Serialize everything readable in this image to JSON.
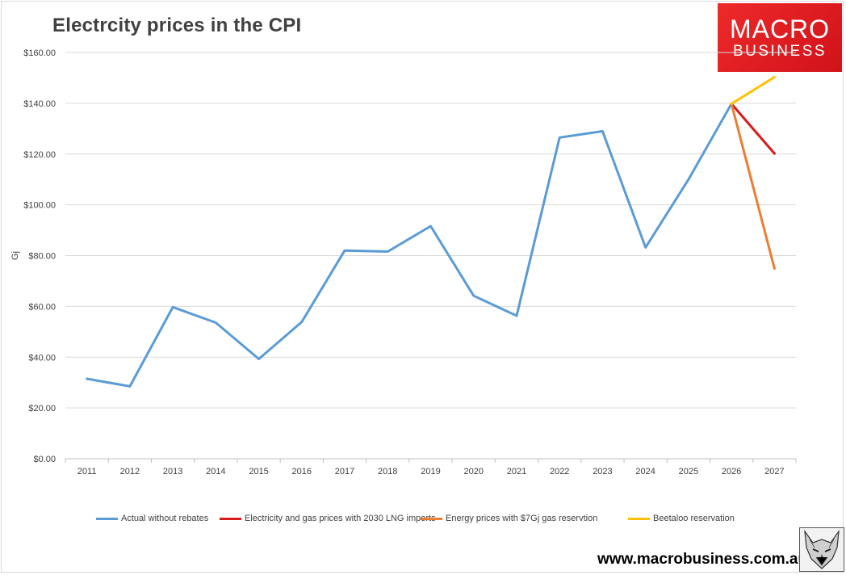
{
  "page": {
    "title": "Electrcity prices in the CPI",
    "logo_line1": "MACRO",
    "logo_line2": "BUSINESS",
    "url": "www.macrobusiness.com.au"
  },
  "chart_data": {
    "type": "line",
    "title": "Electrcity prices in the CPI",
    "ylabel": "Gj",
    "xlabel": "",
    "ylim": [
      0,
      160
    ],
    "ytick_values": [
      0,
      20,
      40,
      60,
      80,
      100,
      120,
      140,
      160
    ],
    "ytick_labels": [
      "$0.00",
      "$20.00",
      "$40.00",
      "$60.00",
      "$80.00",
      "$100.00",
      "$120.00",
      "$140.00",
      "$160.00"
    ],
    "categories": [
      "2011",
      "2012",
      "2013",
      "2014",
      "2015",
      "2016",
      "2017",
      "2018",
      "2019",
      "2020",
      "2021",
      "2022",
      "2023",
      "2024",
      "2025",
      "2026",
      "2027"
    ],
    "grid": true,
    "legend_position": "bottom",
    "series": [
      {
        "name": "Actual without rebates",
        "color": "#5b9bd5",
        "values": [
          31.5,
          28.5,
          59.7,
          53.6,
          39.3,
          53.9,
          82.0,
          81.6,
          91.6,
          64.2,
          56.3,
          126.5,
          129.0,
          83.2,
          110.0,
          139.8,
          null
        ]
      },
      {
        "name": "Electricity and gas prices with 2030 LNG imports",
        "color": "#d91a1a",
        "values": [
          null,
          null,
          null,
          null,
          null,
          null,
          null,
          null,
          null,
          null,
          null,
          null,
          null,
          null,
          null,
          139.8,
          120.2
        ]
      },
      {
        "name": "Energy prices with $7Gj gas reservtion",
        "color": "#ed7d31",
        "values": [
          null,
          null,
          null,
          null,
          null,
          null,
          null,
          null,
          null,
          null,
          null,
          null,
          null,
          null,
          null,
          139.8,
          74.9
        ]
      },
      {
        "name": "Beetaloo reservation",
        "color": "#ffc000",
        "values": [
          null,
          null,
          null,
          null,
          null,
          null,
          null,
          null,
          null,
          null,
          null,
          null,
          null,
          null,
          null,
          139.8,
          150.3
        ]
      }
    ]
  }
}
